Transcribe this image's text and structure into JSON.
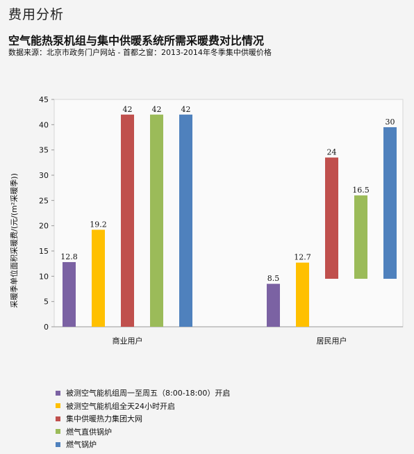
{
  "page": {
    "title": "费用分析"
  },
  "chart_data": {
    "type": "bar",
    "title": "空气能热泵机组与集中供暖系统所需采暖费对比情况",
    "subtitle": "数据来源：北京市政务门户网站 - 首都之窗：2013-2014年冬季集中供暖价格",
    "xlabel": "",
    "ylabel": "采暖季单位面积采暖费/(元/(m²采暖季))",
    "ylim": [
      0,
      45
    ],
    "yticks": [
      0,
      5,
      10,
      15,
      20,
      25,
      30,
      35,
      40,
      45
    ],
    "grid": false,
    "legend_position": "bottom-left",
    "categories": [
      "商业用户",
      "居民用户"
    ],
    "series": [
      {
        "name": "被测空气能机组周一至周五（8:00-18:00）开启",
        "color": "#7b62a3",
        "bars": [
          {
            "low": 0,
            "high": 12.8,
            "label": "12.8"
          },
          {
            "low": 0,
            "high": 8.5,
            "label": "8.5"
          }
        ]
      },
      {
        "name": "被测空气能机组全天24小时开启",
        "color": "#ffc000",
        "bars": [
          {
            "low": 0,
            "high": 19.2,
            "label": "19.2"
          },
          {
            "low": 0,
            "high": 12.7,
            "label": "12.7"
          }
        ]
      },
      {
        "name": "集中供暖热力集团大网",
        "color": "#c0504d",
        "bars": [
          {
            "low": 0,
            "high": 42,
            "label": "42"
          },
          {
            "low": 9.5,
            "high": 33.5,
            "label": "24"
          }
        ]
      },
      {
        "name": "燃气直供锅炉",
        "color": "#9bbb59",
        "bars": [
          {
            "low": 0,
            "high": 42,
            "label": "42"
          },
          {
            "low": 9.5,
            "high": 26,
            "label": "16.5"
          }
        ]
      },
      {
        "name": "燃气锅炉",
        "color": "#4f81bd",
        "bars": [
          {
            "low": 0,
            "high": 42,
            "label": "42"
          },
          {
            "low": 9.5,
            "high": 39.5,
            "label": "30"
          }
        ]
      }
    ]
  }
}
